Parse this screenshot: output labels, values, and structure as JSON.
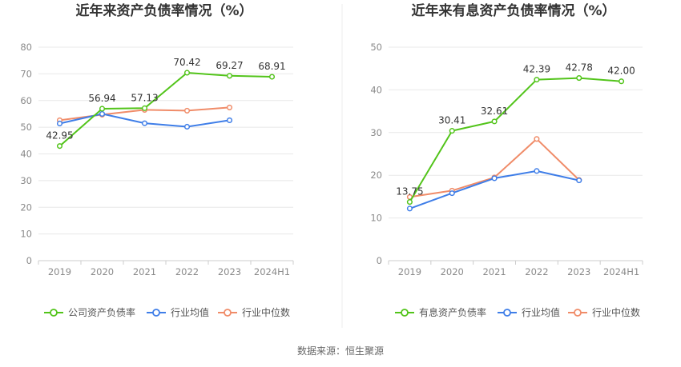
{
  "chart_data": [
    {
      "type": "line",
      "title": "近年来资产负债率情况（%）",
      "categories": [
        "2019",
        "2020",
        "2021",
        "2022",
        "2023",
        "2024H1"
      ],
      "ylim": [
        0,
        80
      ],
      "yticks": [
        0,
        10,
        20,
        30,
        40,
        50,
        60,
        70,
        80
      ],
      "grid": true,
      "legend_position": "bottom",
      "series": [
        {
          "name": "公司资产负债率",
          "color": "#52c41a",
          "values": [
            42.95,
            56.94,
            57.13,
            70.42,
            69.27,
            68.91
          ],
          "labels": [
            "42.95",
            "56.94",
            "57.13",
            "70.42",
            "69.27",
            "68.91"
          ]
        },
        {
          "name": "行业均值",
          "color": "#3f7ee8",
          "values": [
            51.4,
            55.0,
            51.5,
            50.2,
            52.6,
            null
          ]
        },
        {
          "name": "行业中位数",
          "color": "#f08c69",
          "values": [
            52.6,
            54.7,
            56.5,
            56.2,
            57.4,
            null
          ]
        }
      ]
    },
    {
      "type": "line",
      "title": "近年来有息资产负债率情况（%）",
      "categories": [
        "2019",
        "2020",
        "2021",
        "2022",
        "2023",
        "2024H1"
      ],
      "ylim": [
        0,
        50
      ],
      "yticks": [
        0,
        10,
        20,
        30,
        40,
        50
      ],
      "grid": true,
      "legend_position": "bottom",
      "series": [
        {
          "name": "有息资产负债率",
          "color": "#52c41a",
          "values": [
            13.75,
            30.41,
            32.61,
            42.39,
            42.78,
            42.0
          ],
          "labels": [
            "13.75",
            "30.41",
            "32.61",
            "42.39",
            "42.78",
            "42.00"
          ]
        },
        {
          "name": "行业均值",
          "color": "#3f7ee8",
          "values": [
            12.2,
            15.8,
            19.3,
            21.0,
            18.8,
            null
          ]
        },
        {
          "name": "行业中位数",
          "color": "#f08c69",
          "values": [
            14.9,
            16.4,
            19.5,
            28.5,
            18.9,
            null
          ]
        }
      ]
    }
  ],
  "footer": {
    "source": "数据来源：恒生聚源"
  }
}
